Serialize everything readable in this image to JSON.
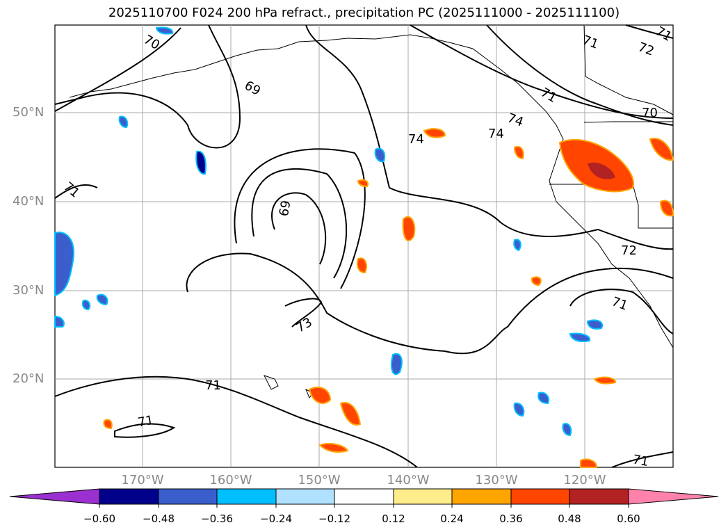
{
  "title": "2025110700 F024 200 hPa refract., precipitation PC (2025111000 - 2025111100)",
  "lat_labels": [
    "50°N",
    "40°N",
    "30°N",
    "20°N"
  ],
  "lon_labels": [
    "170°W",
    "160°W",
    "150°W",
    "140°W",
    "130°W",
    "120°W"
  ],
  "contour_labels": [
    "70",
    "69",
    "71",
    "74",
    "74",
    "74",
    "71",
    "72",
    "71",
    "70",
    "69",
    "73",
    "72",
    "71",
    "71",
    "71",
    "71",
    "71"
  ],
  "colorbar": {
    "tick_labels": [
      "−0.60",
      "−0.48",
      "−0.36",
      "−0.24",
      "−0.12",
      "0.12",
      "0.24",
      "0.36",
      "0.48",
      "0.60"
    ],
    "colors": [
      "#9b30d0",
      "#00008b",
      "#3a5fcd",
      "#00bfff",
      "#b0e2ff",
      "#ffffff",
      "#ffec8b",
      "#ffa500",
      "#ff4500",
      "#b22222",
      "#ff82ab"
    ]
  }
}
